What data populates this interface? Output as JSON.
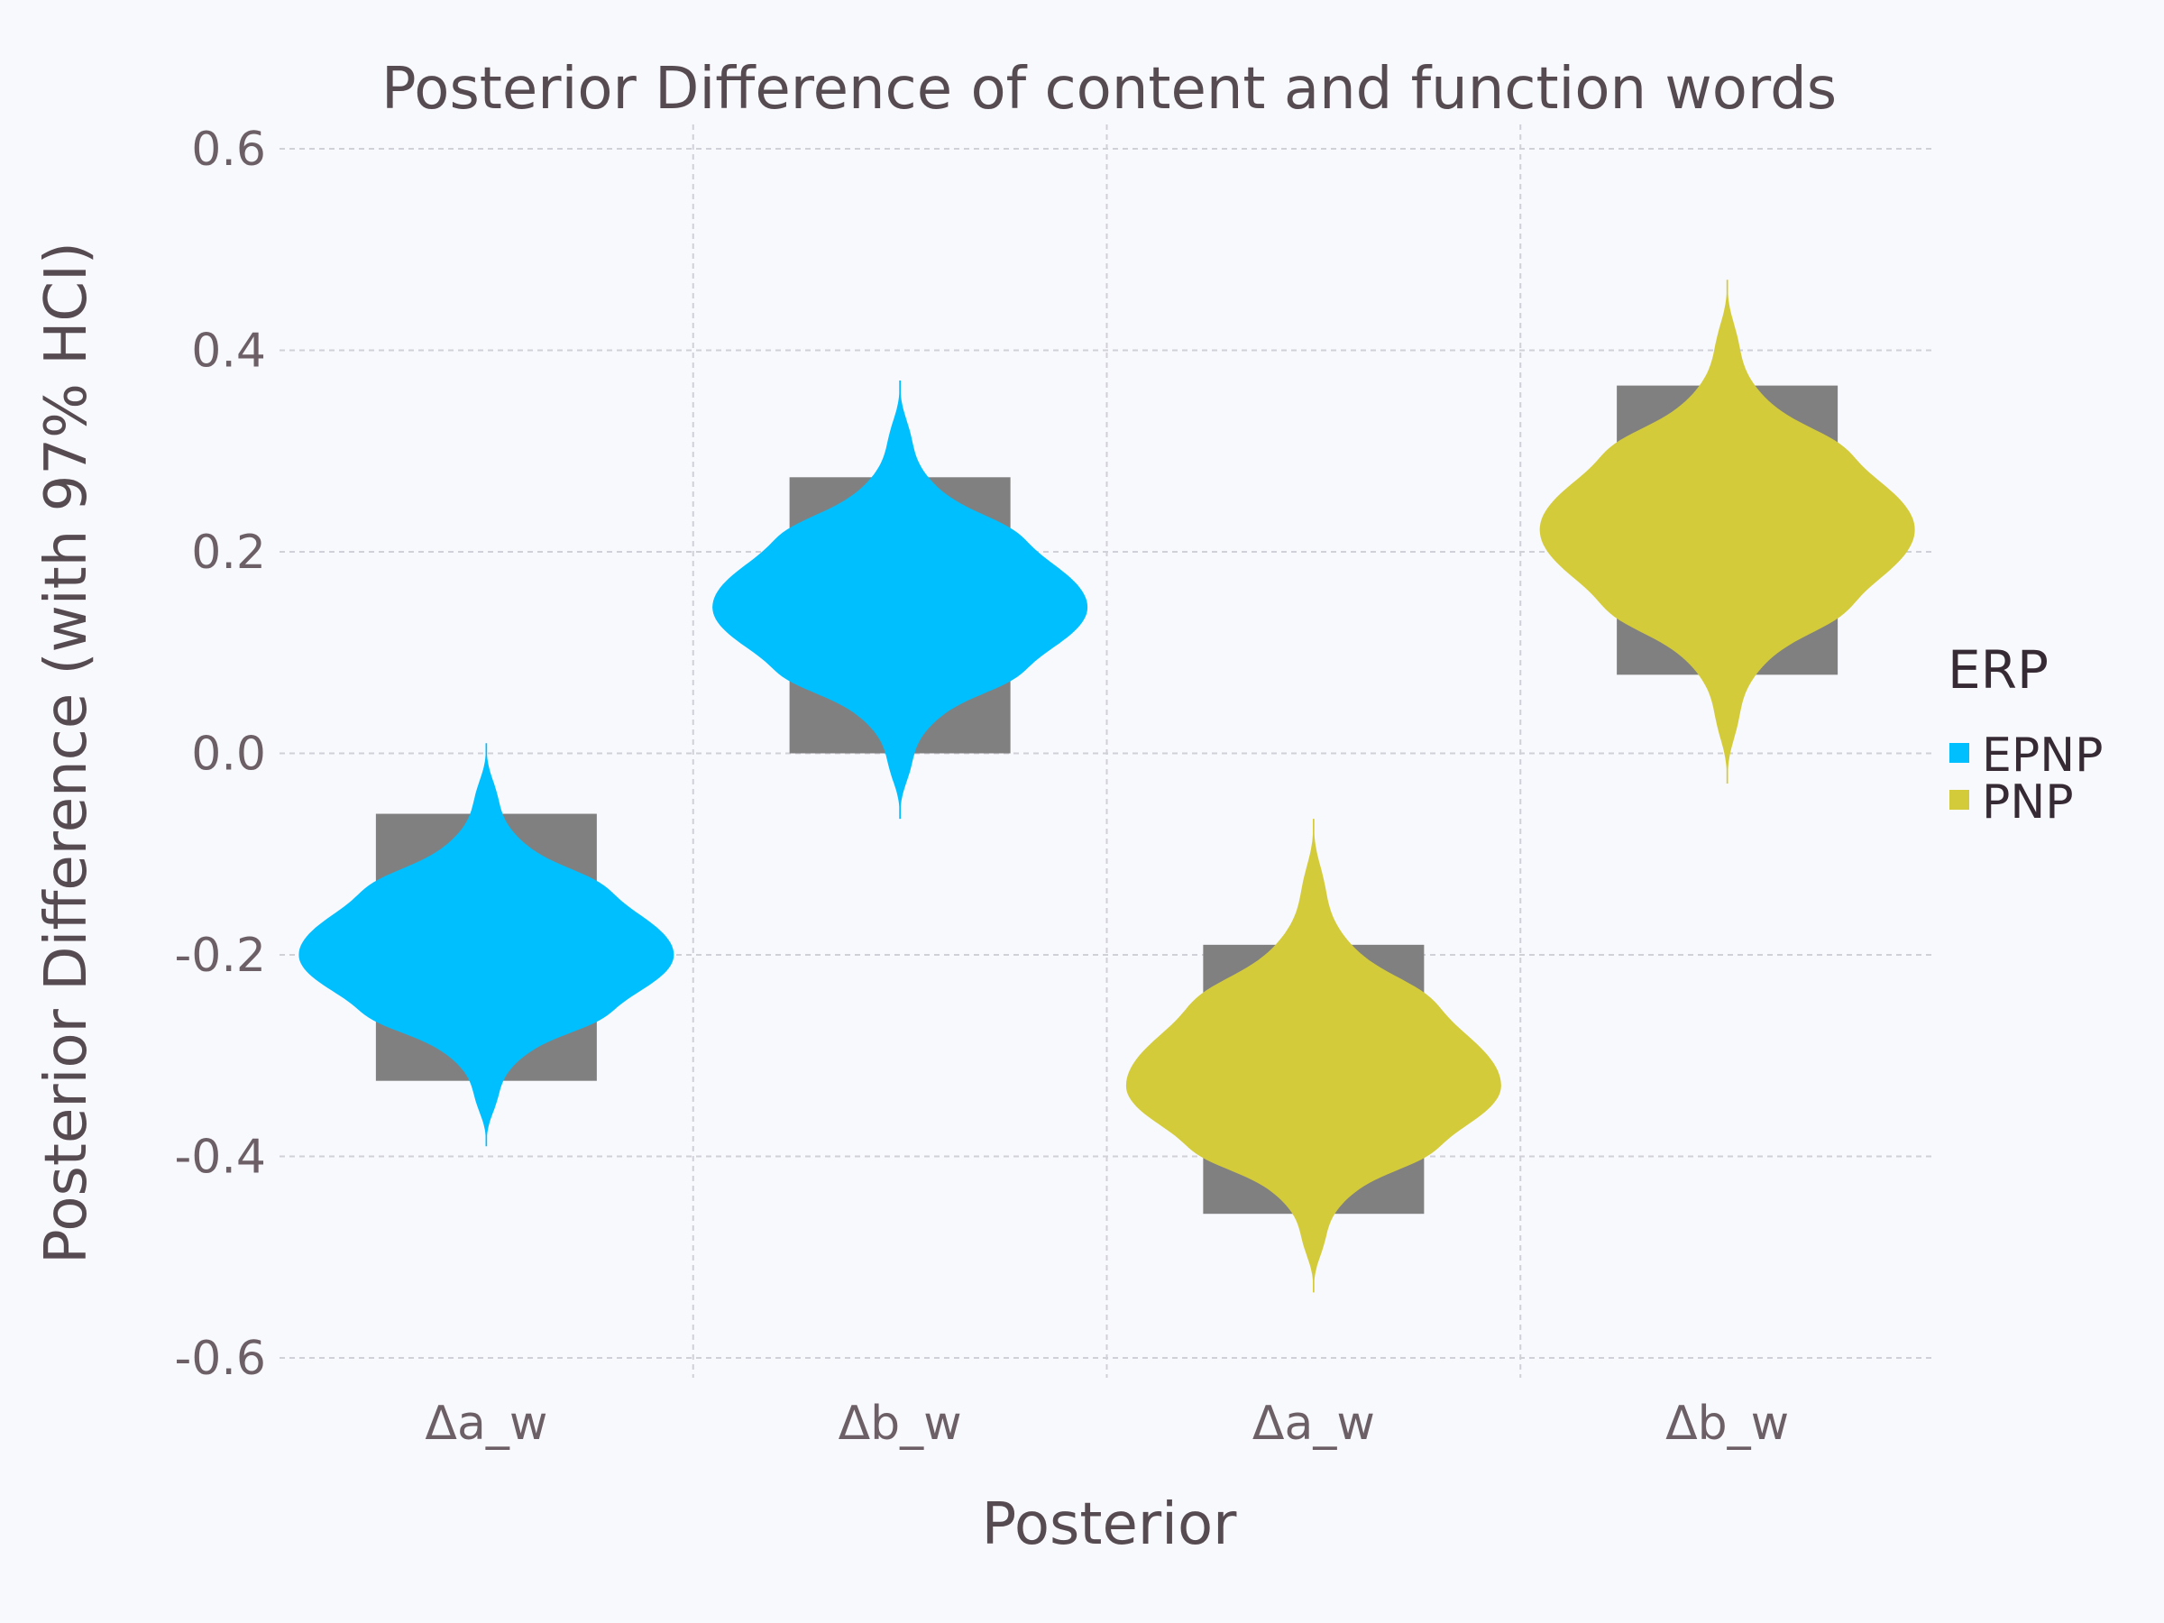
{
  "chart_data": {
    "type": "violin",
    "title": "Posterior Difference of content and function words",
    "xlabel": "Posterior",
    "ylabel": "Posterior Difference (with 97% HCI)",
    "ylim": [
      -0.6,
      0.6
    ],
    "yticks": [
      "-0.6",
      "-0.4",
      "-0.2",
      "0.0",
      "0.2",
      "0.4",
      "0.6"
    ],
    "ytick_values": [
      -0.6,
      -0.4,
      -0.2,
      0.0,
      0.2,
      0.4,
      0.6
    ],
    "categories": [
      "Δa_w",
      "Δb_w",
      "Δa_w",
      "Δb_w"
    ],
    "grid": true,
    "legend": {
      "title": "ERP",
      "position": "right",
      "entries": [
        {
          "name": "EPNP",
          "color": "#00bfff"
        },
        {
          "name": "PNP",
          "color": "#d4cb3a"
        }
      ]
    },
    "hci_color": "#808080",
    "series": [
      {
        "category": "Δa_w",
        "group": "EPNP",
        "color": "#00bfff",
        "center": -0.2,
        "hci": [
          -0.325,
          -0.06
        ],
        "extent": [
          -0.39,
          0.01
        ]
      },
      {
        "category": "Δb_w",
        "group": "EPNP",
        "color": "#00bfff",
        "center": 0.145,
        "hci": [
          0.0,
          0.274
        ],
        "extent": [
          -0.065,
          0.37
        ]
      },
      {
        "category": "Δa_w",
        "group": "PNP",
        "color": "#d4cb3a",
        "center": -0.33,
        "hci": [
          -0.457,
          -0.19
        ],
        "extent": [
          -0.535,
          -0.065
        ]
      },
      {
        "category": "Δb_w",
        "group": "PNP",
        "color": "#d4cb3a",
        "center": 0.222,
        "hci": [
          0.078,
          0.365
        ],
        "extent": [
          -0.03,
          0.47
        ]
      }
    ]
  }
}
